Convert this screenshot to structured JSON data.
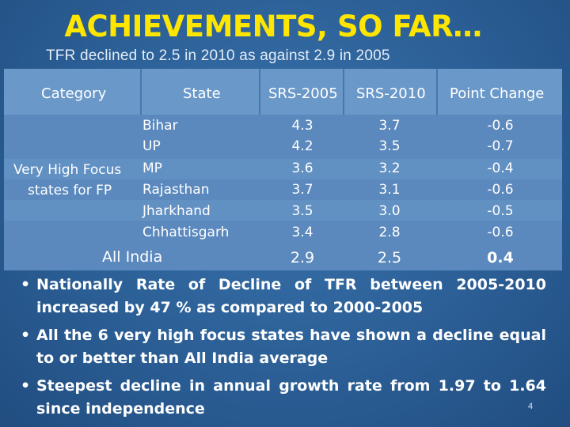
{
  "slide": {
    "title": "ACHIEVEMENTS, SO FAR…",
    "subtitle": "TFR declined to 2.5 in 2010 as against 2.9 in 2005",
    "page_number": "4"
  },
  "table": {
    "headers": [
      "Category",
      "State",
      "SRS-2005",
      "SRS-2010",
      "Point Change"
    ],
    "group_label_line1": "Very High Focus",
    "group_label_line2": "states for FP",
    "rows": [
      {
        "state": "Bihar",
        "srs2005": "4.3",
        "srs2010": "3.7",
        "change": "-0.6"
      },
      {
        "state": "UP",
        "srs2005": "4.2",
        "srs2010": "3.5",
        "change": "-0.7"
      },
      {
        "state": "MP",
        "srs2005": "3.6",
        "srs2010": "3.2",
        "change": "-0.4"
      },
      {
        "state": "Rajasthan",
        "srs2005": "3.7",
        "srs2010": "3.1",
        "change": "-0.6"
      },
      {
        "state": "Jharkhand",
        "srs2005": "3.5",
        "srs2010": "3.0",
        "change": "-0.5"
      },
      {
        "state": "Chhattisgarh",
        "srs2005": "3.4",
        "srs2010": "2.8",
        "change": "-0.6"
      }
    ],
    "total": {
      "label": "All India",
      "srs2005": "2.9",
      "srs2010": "2.5",
      "change": "0.4"
    }
  },
  "bullets": [
    "Nationally Rate of Decline of TFR between 2005-2010 increased by 47 % as compared to 2000-2005",
    "All the 6 very high focus states have shown a decline equal to or better than All India average",
    "Steepest decline in annual growth rate from 1.97 to 1.64 since independence"
  ]
}
